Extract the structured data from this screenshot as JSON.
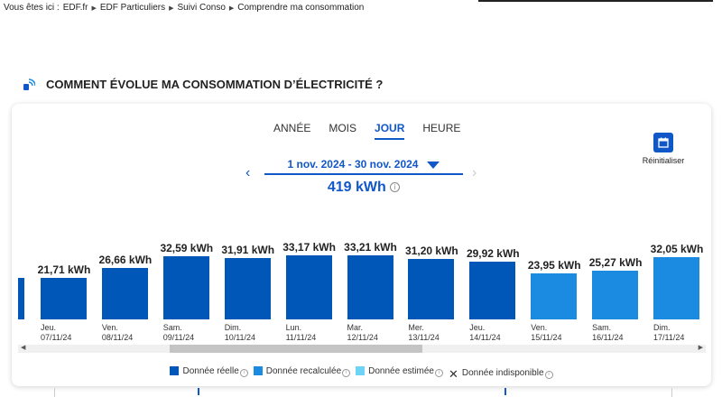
{
  "breadcrumb": {
    "prefix": "Vous êtes ici :",
    "items": [
      "EDF.fr",
      "EDF Particuliers",
      "Suivi Conso",
      "Comprendre ma consommation"
    ]
  },
  "section_title": "COMMENT ÉVOLUE MA CONSOMMATION D’ÉLECTRICITÉ ?",
  "tabs": [
    {
      "label": "ANNÉE"
    },
    {
      "label": "MOIS"
    },
    {
      "label": "JOUR",
      "active": true
    },
    {
      "label": "HEURE"
    }
  ],
  "reset_label": "Réinitialiser",
  "period": "1 nov. 2024 - 30 nov. 2024",
  "total": "419 kWh",
  "colors": {
    "reelle": "#0057b8",
    "recalculee": "#1a8be0",
    "estimee": "#6fd3f5",
    "accent": "#1057c8"
  },
  "legend": [
    {
      "label": "Donnée réelle",
      "color": "#0057b8"
    },
    {
      "label": "Donnée recalculée",
      "color": "#1a8be0"
    },
    {
      "label": "Donnée estimée",
      "color": "#6fd3f5"
    },
    {
      "label": "Donnée indisponible",
      "icon": "x-icon"
    }
  ],
  "chart_data": {
    "type": "bar",
    "unit": "kWh",
    "bars": [
      {
        "day": "Jeu.",
        "date": "07/11/24",
        "value": 21.71,
        "label": "21,71 kWh",
        "kind": "reelle"
      },
      {
        "day": "Ven.",
        "date": "08/11/24",
        "value": 26.66,
        "label": "26,66 kWh",
        "kind": "reelle"
      },
      {
        "day": "Sam.",
        "date": "09/11/24",
        "value": 32.59,
        "label": "32,59 kWh",
        "kind": "reelle"
      },
      {
        "day": "Dim.",
        "date": "10/11/24",
        "value": 31.91,
        "label": "31,91 kWh",
        "kind": "reelle"
      },
      {
        "day": "Lun.",
        "date": "11/11/24",
        "value": 33.17,
        "label": "33,17 kWh",
        "kind": "reelle"
      },
      {
        "day": "Mar.",
        "date": "12/11/24",
        "value": 33.21,
        "label": "33,21 kWh",
        "kind": "reelle"
      },
      {
        "day": "Mer.",
        "date": "13/11/24",
        "value": 31.2,
        "label": "31,20 kWh",
        "kind": "reelle"
      },
      {
        "day": "Jeu.",
        "date": "14/11/24",
        "value": 29.92,
        "label": "29,92 kWh",
        "kind": "reelle"
      },
      {
        "day": "Ven.",
        "date": "15/11/24",
        "value": 23.95,
        "label": "23,95 kWh",
        "kind": "recalculee"
      },
      {
        "day": "Sam.",
        "date": "16/11/24",
        "value": 25.27,
        "label": "25,27 kWh",
        "kind": "recalculee"
      },
      {
        "day": "Dim.",
        "date": "17/11/24",
        "value": 32.05,
        "label": "32,05 kWh",
        "kind": "recalculee"
      }
    ]
  }
}
